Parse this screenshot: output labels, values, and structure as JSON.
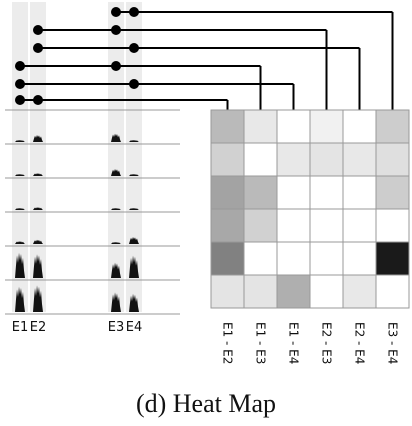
{
  "caption": "(d)  Heat Map",
  "electrodes": [
    "E1",
    "E2",
    "E3",
    "E4"
  ],
  "pairs": [
    "E1 - E2",
    "E1 - E3",
    "E1 - E4",
    "E2 - E3",
    "E2 - E4",
    "E3 - E4"
  ],
  "heatmap": {
    "intensity": [
      [
        0.3,
        0.1,
        0.0,
        0.06,
        0.0,
        0.22
      ],
      [
        0.2,
        0.0,
        0.1,
        0.12,
        0.1,
        0.14
      ],
      [
        0.4,
        0.3,
        0.0,
        0.0,
        0.0,
        0.22
      ],
      [
        0.38,
        0.2,
        0.0,
        0.0,
        0.0,
        0.0
      ],
      [
        0.55,
        0.0,
        0.0,
        0.0,
        0.0,
        1.0
      ],
      [
        0.12,
        0.12,
        0.35,
        0.0,
        0.1,
        0.0
      ]
    ],
    "color_low": "#ffffff",
    "color_high": "#1a1a1a"
  },
  "traces": [
    [
      0.05,
      0.25,
      0.3,
      0.05
    ],
    [
      0.05,
      0.1,
      0.25,
      0.05
    ],
    [
      0.05,
      0.1,
      0.05,
      0.05
    ],
    [
      0.1,
      0.15,
      0.05,
      0.25
    ],
    [
      0.9,
      0.85,
      0.55,
      0.8
    ],
    [
      0.9,
      0.95,
      0.7,
      0.65
    ]
  ],
  "colors": {
    "line": "#000000",
    "grid": "#999999",
    "band": "#ececec"
  }
}
